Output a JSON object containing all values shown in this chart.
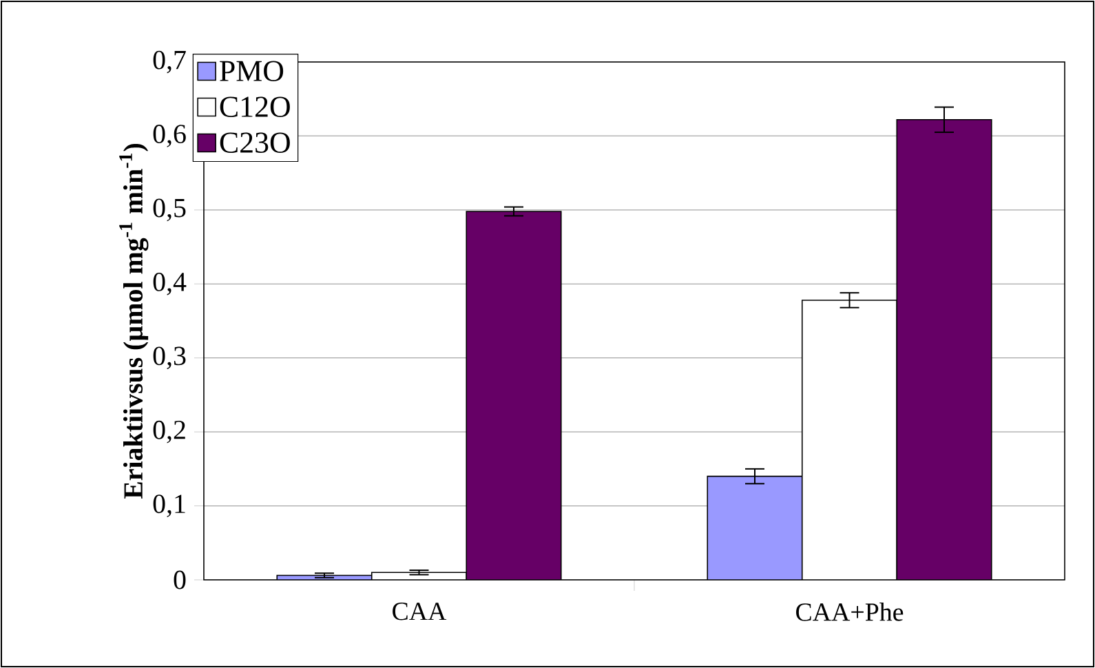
{
  "chart_data": {
    "type": "bar",
    "ylabel": "Eriaktiivsus (µmol mg$^{-1}$ min$^{-1}$)",
    "categories": [
      "CAA",
      "CAA+Phe"
    ],
    "series": [
      {
        "name": "PMO",
        "color": "#9999ff",
        "values": [
          0.006,
          0.14
        ],
        "errors": [
          0.003,
          0.01
        ]
      },
      {
        "name": "C12O",
        "color": "#ffffff",
        "values": [
          0.01,
          0.378
        ],
        "errors": [
          0.003,
          0.01
        ]
      },
      {
        "name": "C23O",
        "color": "#660066",
        "values": [
          0.498,
          0.622
        ],
        "errors": [
          0.006,
          0.017
        ]
      }
    ],
    "ylim": [
      0,
      0.7
    ],
    "yticks": [
      0,
      {
        "value": 0.1,
        "label": "0,1"
      },
      {
        "value": 0.2,
        "label": "0,2"
      },
      {
        "value": 0.3,
        "label": "0,3"
      },
      {
        "value": 0.4,
        "label": "0,4"
      },
      {
        "value": 0.5,
        "label": "0,5"
      },
      {
        "value": 0.6,
        "label": "0,6"
      },
      {
        "value": 0.7,
        "label": "0,7"
      }
    ],
    "grid": "y",
    "legend": "top left"
  }
}
